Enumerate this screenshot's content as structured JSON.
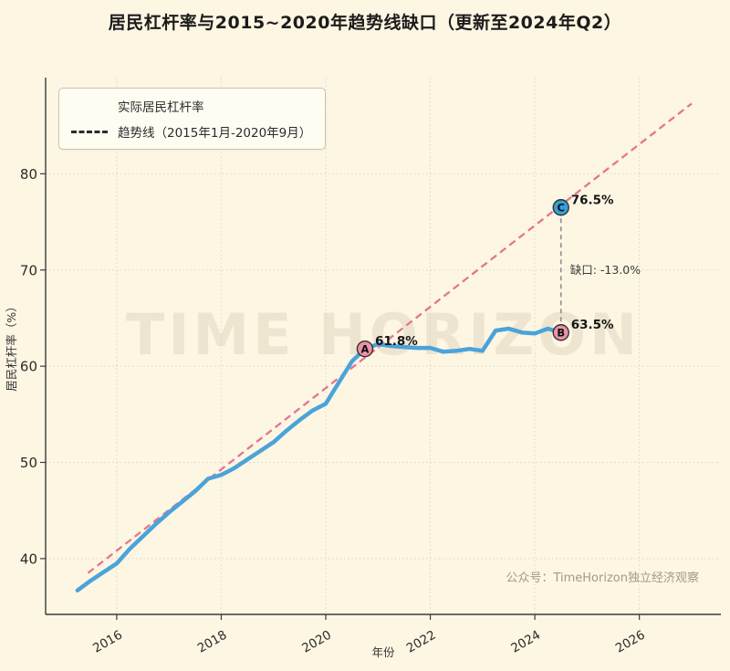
{
  "page": {
    "watermark": "TIME HORIZON",
    "credit": "公众号：TimeHorizon独立经济观察",
    "background_color": "#fdf6e3"
  },
  "chart_data": {
    "type": "line",
    "title": "居民杠杆率与2015~2020年趋势线缺口（更新至2024年Q2）",
    "xlabel": "年份",
    "ylabel": "居民杠杆率（%）",
    "xlim": [
      2014.64,
      2027.56
    ],
    "ylim": [
      34.2,
      90.0
    ],
    "x_ticks": [
      2016,
      2018,
      2020,
      2022,
      2024,
      2026
    ],
    "y_ticks": [
      40,
      50,
      60,
      70,
      80
    ],
    "grid": "dotted",
    "legend_position": "upper-left",
    "series": [
      {
        "name": "实际居民杠杆率",
        "style": "solid",
        "color": "#4ba3d9",
        "x": [
          2015.25,
          2015.5,
          2015.75,
          2016.0,
          2016.25,
          2016.5,
          2016.75,
          2017.0,
          2017.25,
          2017.5,
          2017.75,
          2018.0,
          2018.25,
          2018.5,
          2018.75,
          2019.0,
          2019.25,
          2019.5,
          2019.75,
          2020.0,
          2020.25,
          2020.5,
          2020.75,
          2021.0,
          2021.25,
          2021.5,
          2021.75,
          2022.0,
          2022.25,
          2022.5,
          2022.75,
          2023.0,
          2023.25,
          2023.5,
          2023.75,
          2024.0,
          2024.25,
          2024.5
        ],
        "y": [
          36.7,
          37.7,
          38.6,
          39.5,
          41.0,
          42.3,
          43.6,
          44.8,
          45.9,
          47.0,
          48.3,
          48.7,
          49.4,
          50.3,
          51.2,
          52.1,
          53.3,
          54.4,
          55.4,
          56.1,
          58.3,
          60.5,
          61.8,
          62.3,
          62.1,
          62.0,
          61.9,
          61.9,
          61.5,
          61.6,
          61.8,
          61.6,
          63.7,
          63.9,
          63.5,
          63.4,
          63.9,
          63.5
        ]
      },
      {
        "name": "趋势线（2015年1月-2020年9月）",
        "style": "dashed",
        "color": "#e3758f",
        "x": [
          2015.45,
          2027.0
        ],
        "y": [
          38.5,
          87.3
        ]
      }
    ],
    "annotations": {
      "points": [
        {
          "label": "A",
          "x": 2020.75,
          "y": 61.8,
          "value_label": "61.8%",
          "fill": "#ec93a8"
        },
        {
          "label": "B",
          "x": 2024.5,
          "y": 63.5,
          "value_label": "63.5%",
          "fill": "#ec93a8"
        },
        {
          "label": "C",
          "x": 2024.5,
          "y": 76.5,
          "value_label": "76.5%",
          "fill": "#35a0d8"
        }
      ],
      "gap_label": "缺口: -13.0%",
      "connector": {
        "x": 2024.5,
        "from_y": 63.5,
        "to_y": 76.5,
        "color": "#8f8f8f"
      }
    }
  }
}
